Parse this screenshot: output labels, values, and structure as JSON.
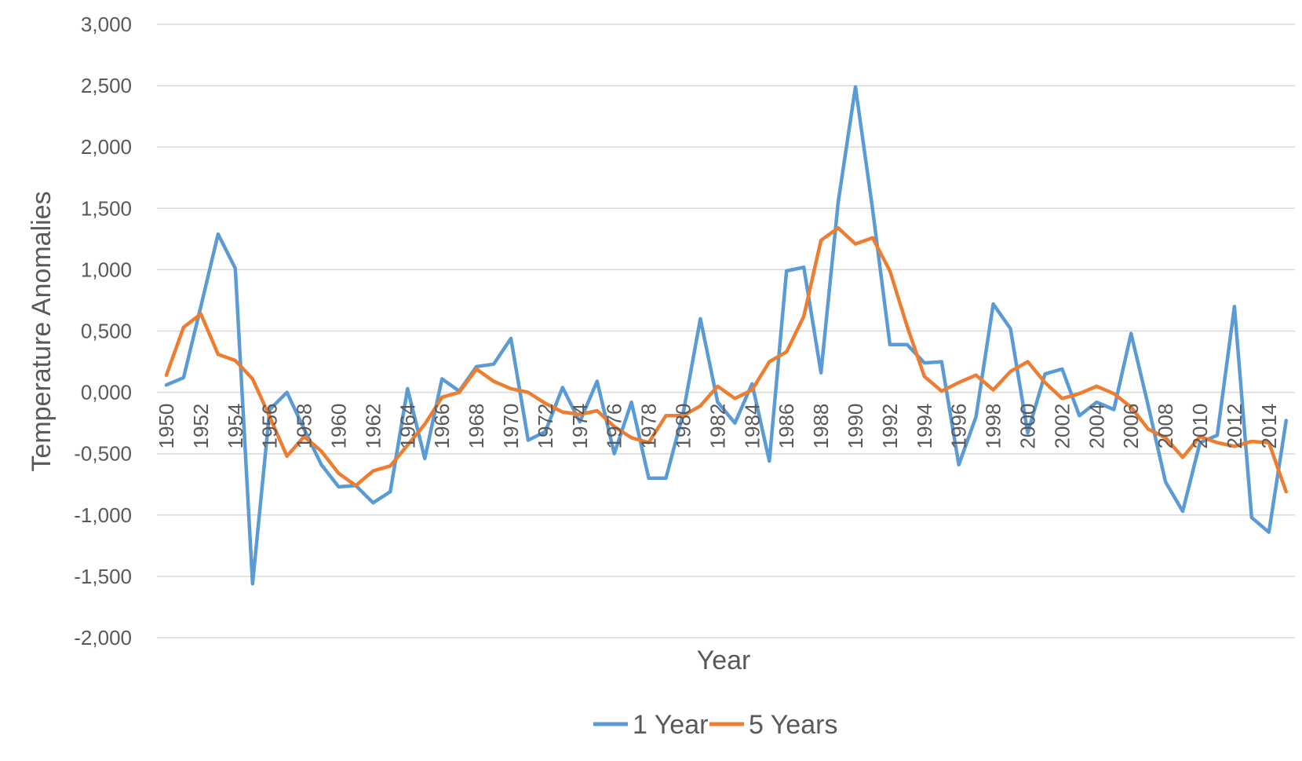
{
  "chart_data": {
    "type": "line",
    "title": "",
    "xlabel": "Year",
    "ylabel": "Temperature Anomalies",
    "ylim": [
      -2000,
      3000
    ],
    "yticks": [
      3000,
      2500,
      2000,
      1500,
      1000,
      500,
      0,
      -500,
      -1000,
      -1500,
      -2000
    ],
    "ytick_labels": [
      "3,000",
      "2,500",
      "2,000",
      "1,500",
      "1,000",
      "0,500",
      "0,000",
      "-0,500",
      "-1,000",
      "-1,500",
      "-2,000"
    ],
    "x": [
      1950,
      1951,
      1952,
      1953,
      1954,
      1955,
      1956,
      1957,
      1958,
      1959,
      1960,
      1961,
      1962,
      1963,
      1964,
      1965,
      1966,
      1967,
      1968,
      1969,
      1970,
      1971,
      1972,
      1973,
      1974,
      1975,
      1976,
      1977,
      1978,
      1979,
      1980,
      1981,
      1982,
      1983,
      1984,
      1985,
      1986,
      1987,
      1988,
      1989,
      1990,
      1991,
      1992,
      1993,
      1994,
      1995,
      1996,
      1997,
      1998,
      1999,
      2000,
      2001,
      2002,
      2003,
      2004,
      2005,
      2006,
      2007,
      2008,
      2009,
      2010,
      2011,
      2012,
      2013,
      2014,
      2015
    ],
    "xtick_labels": [
      "1950",
      "1952",
      "1954",
      "1956",
      "1958",
      "1960",
      "1962",
      "1964",
      "1966",
      "1968",
      "1970",
      "1972",
      "1974",
      "1976",
      "1978",
      "1980",
      "1982",
      "1984",
      "1986",
      "1988",
      "1990",
      "1992",
      "1994",
      "1996",
      "1998",
      "2000",
      "2002",
      "2004",
      "2006",
      "2008",
      "2010",
      "2012",
      "2014"
    ],
    "series": [
      {
        "name": "1 Year",
        "color": "#5B9BD5",
        "values": [
          60,
          120,
          700,
          1290,
          1010,
          -1560,
          -140,
          0,
          -300,
          -590,
          -770,
          -760,
          -900,
          -810,
          30,
          -540,
          110,
          10,
          210,
          230,
          440,
          -390,
          -320,
          40,
          -240,
          90,
          -500,
          -80,
          -700,
          -700,
          -170,
          600,
          -80,
          -250,
          70,
          -560,
          990,
          1020,
          160,
          1550,
          2490,
          1490,
          390,
          390,
          240,
          250,
          -590,
          -200,
          720,
          520,
          -330,
          150,
          190,
          -190,
          -80,
          -140,
          480,
          -110,
          -730,
          -970,
          -410,
          -350,
          700,
          -1020,
          -1140,
          -230
        ]
      },
      {
        "name": "5 Years",
        "color": "#ED7D31",
        "values": [
          140,
          530,
          640,
          310,
          260,
          110,
          -200,
          -520,
          -360,
          -480,
          -660,
          -760,
          -640,
          -600,
          -430,
          -260,
          -40,
          0,
          190,
          90,
          30,
          0,
          -90,
          -160,
          -180,
          -150,
          -280,
          -370,
          -410,
          -190,
          -190,
          -110,
          50,
          -50,
          20,
          250,
          330,
          620,
          1240,
          1340,
          1210,
          1260,
          990,
          540,
          130,
          10,
          80,
          140,
          20,
          170,
          250,
          80,
          -50,
          -10,
          50,
          -10,
          -120,
          -300,
          -370,
          -530,
          -360,
          -410,
          -440,
          -400,
          -410,
          -810
        ]
      }
    ],
    "grid": true,
    "legend": "bottom"
  }
}
